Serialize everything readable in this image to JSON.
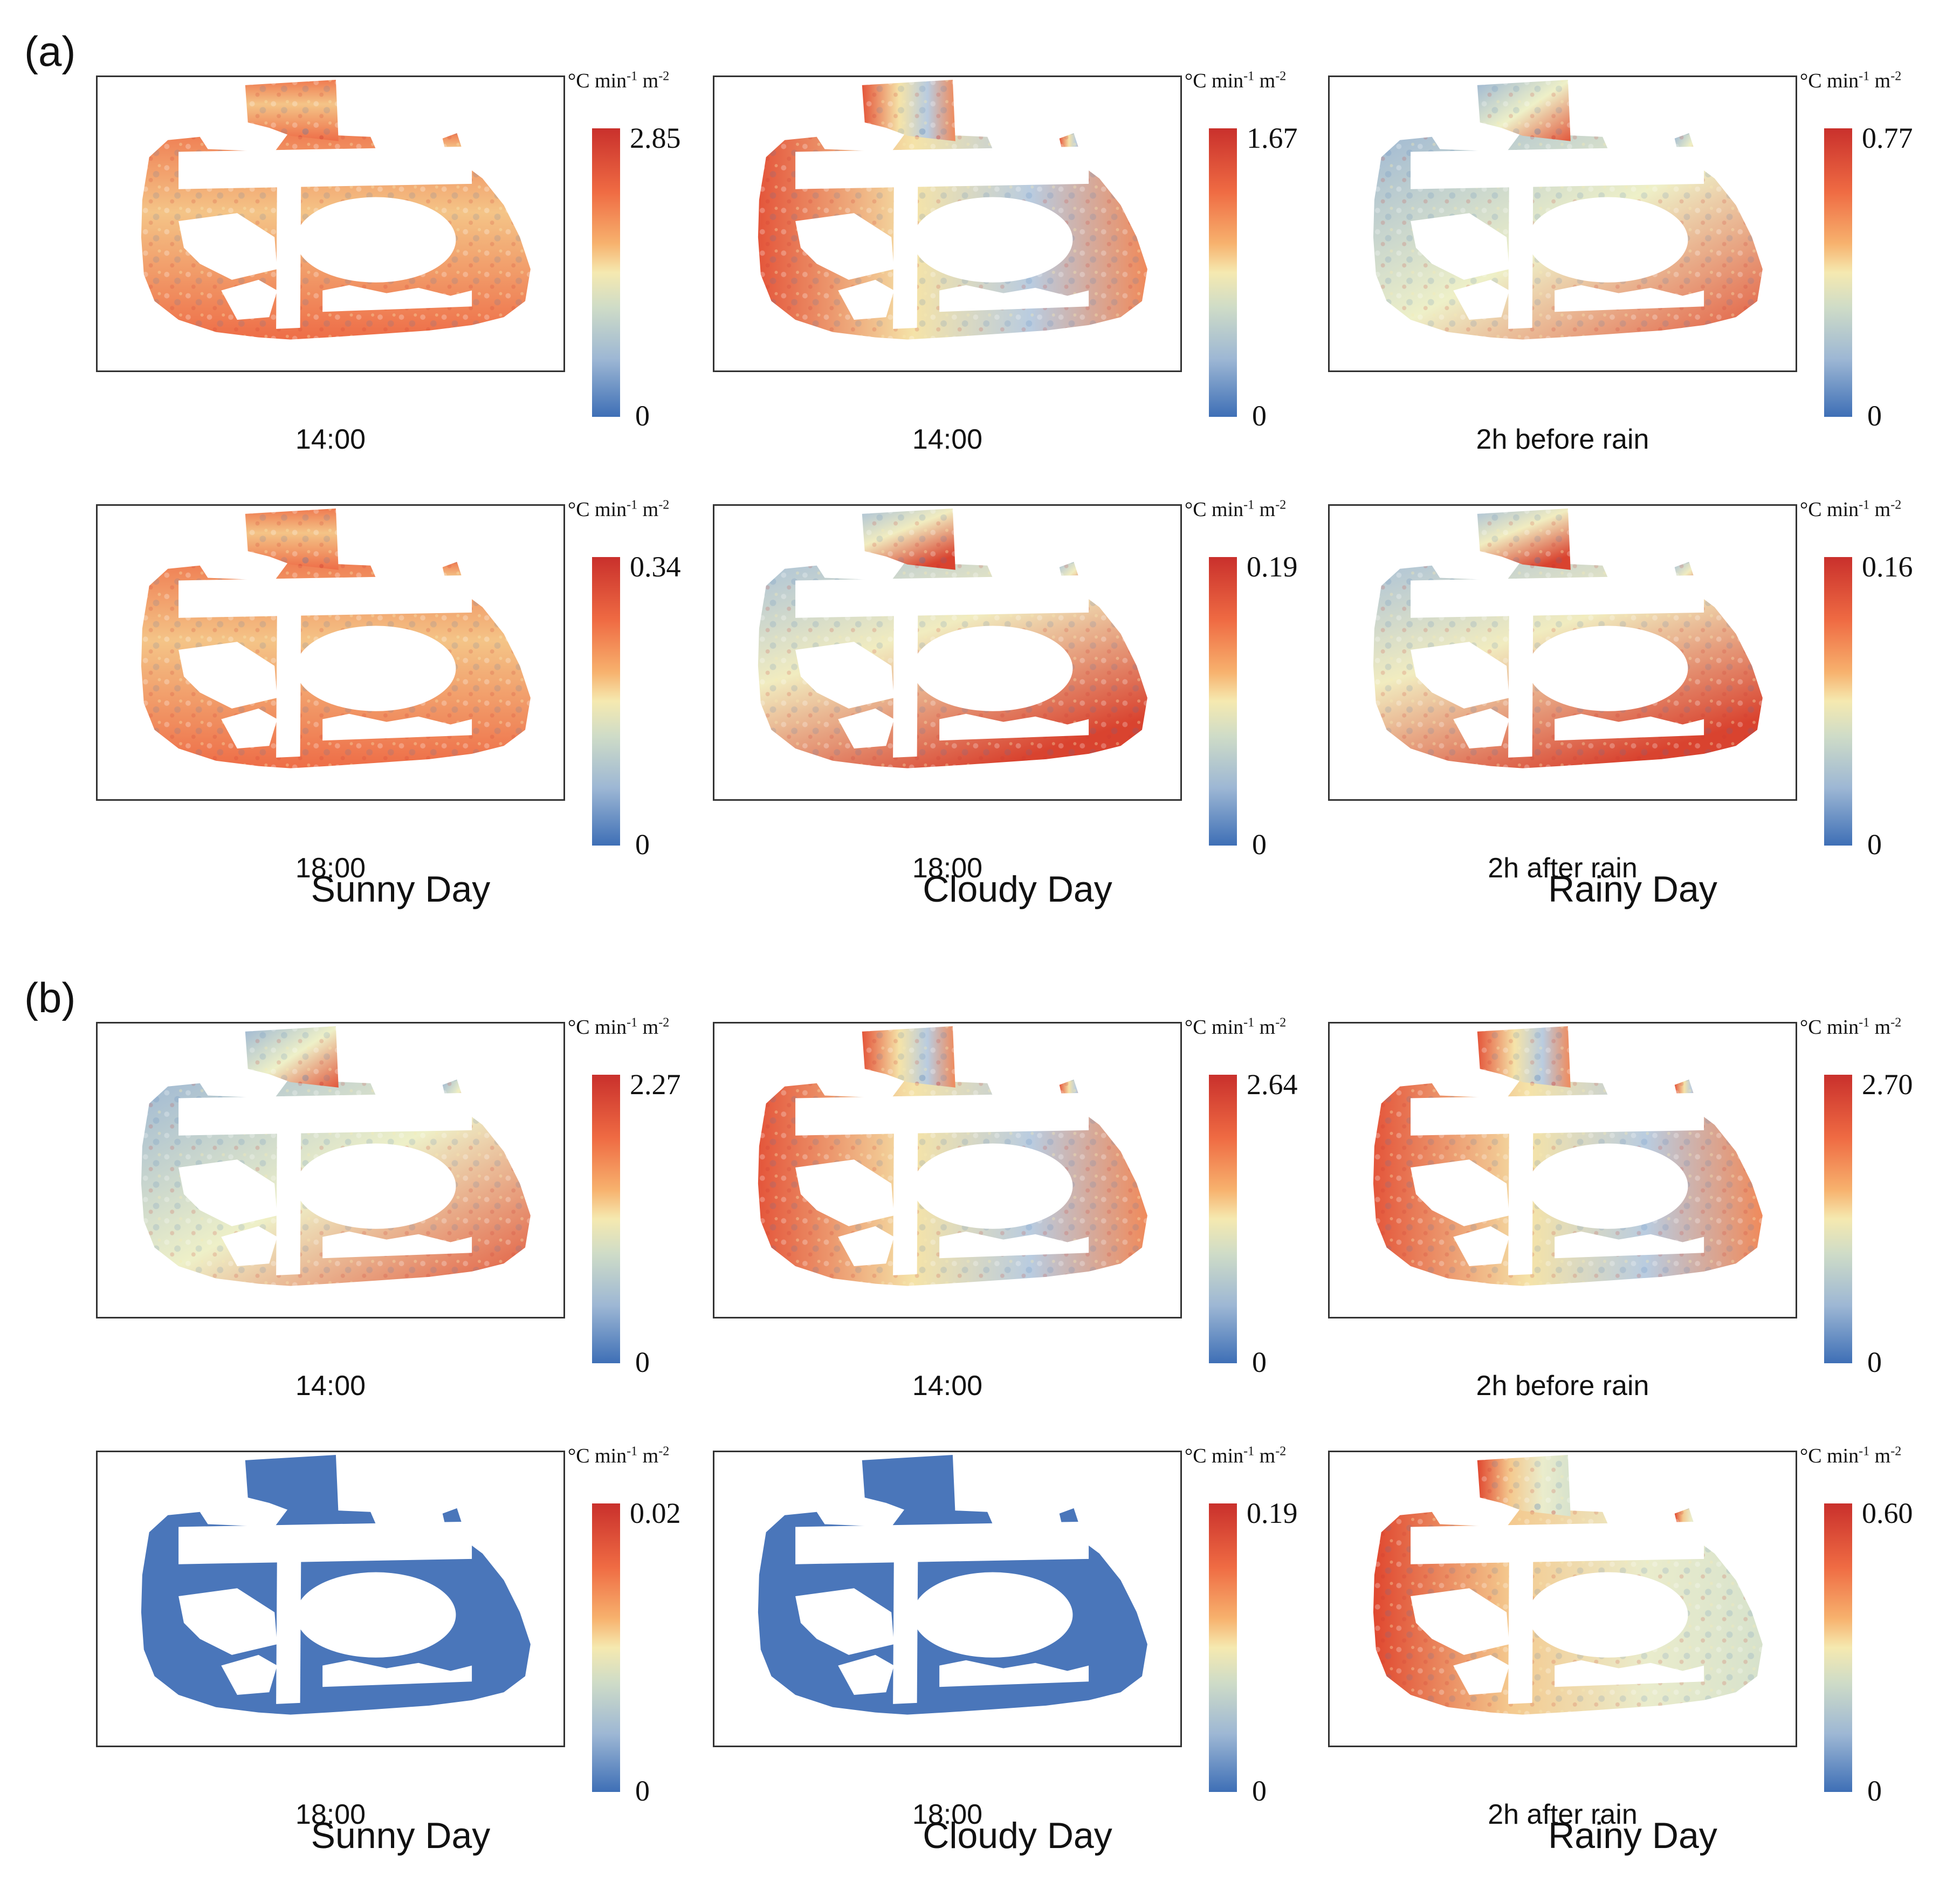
{
  "unit_label": "°C min",
  "unit_exp1": "-1",
  "unit_mid": " m",
  "unit_exp2": "-2",
  "colors": {
    "max": "#c9302c",
    "mid": "#f5e9b0",
    "min": "#3e6fb6"
  },
  "figure_a": {
    "label": "(a)",
    "panels": [
      {
        "caption": "14:00",
        "max": "2.85",
        "min": "0",
        "pattern": "warm"
      },
      {
        "caption": "14:00",
        "max": "1.67",
        "min": "0",
        "pattern": "warm-edge"
      },
      {
        "caption": "2h before rain",
        "max": "0.77",
        "min": "0",
        "pattern": "mixed"
      },
      {
        "caption": "18:00",
        "max": "0.34",
        "min": "0",
        "pattern": "warm"
      },
      {
        "caption": "18:00",
        "max": "0.19",
        "min": "0",
        "pattern": "south-warm"
      },
      {
        "caption": "2h after rain",
        "max": "0.16",
        "min": "0",
        "pattern": "south-warm"
      }
    ],
    "days": [
      "Sunny Day",
      "Cloudy  Day",
      "Rainy Day"
    ]
  },
  "figure_b": {
    "label": "(b)",
    "panels": [
      {
        "caption": "14:00",
        "max": "2.27",
        "min": "0",
        "pattern": "mixed"
      },
      {
        "caption": "14:00",
        "max": "2.64",
        "min": "0",
        "pattern": "warm-edge"
      },
      {
        "caption": "2h before rain",
        "max": "2.70",
        "min": "0",
        "pattern": "warm-edge"
      },
      {
        "caption": "18:00",
        "max": "0.02",
        "min": "0",
        "pattern": "flat"
      },
      {
        "caption": "18:00",
        "max": "0.19",
        "min": "0",
        "pattern": "flat"
      },
      {
        "caption": "2h after rain",
        "max": "0.60",
        "min": "0",
        "pattern": "west-warm"
      }
    ],
    "days": [
      "Sunny Day",
      "Cloudy  Day",
      "Rainy Day"
    ]
  }
}
